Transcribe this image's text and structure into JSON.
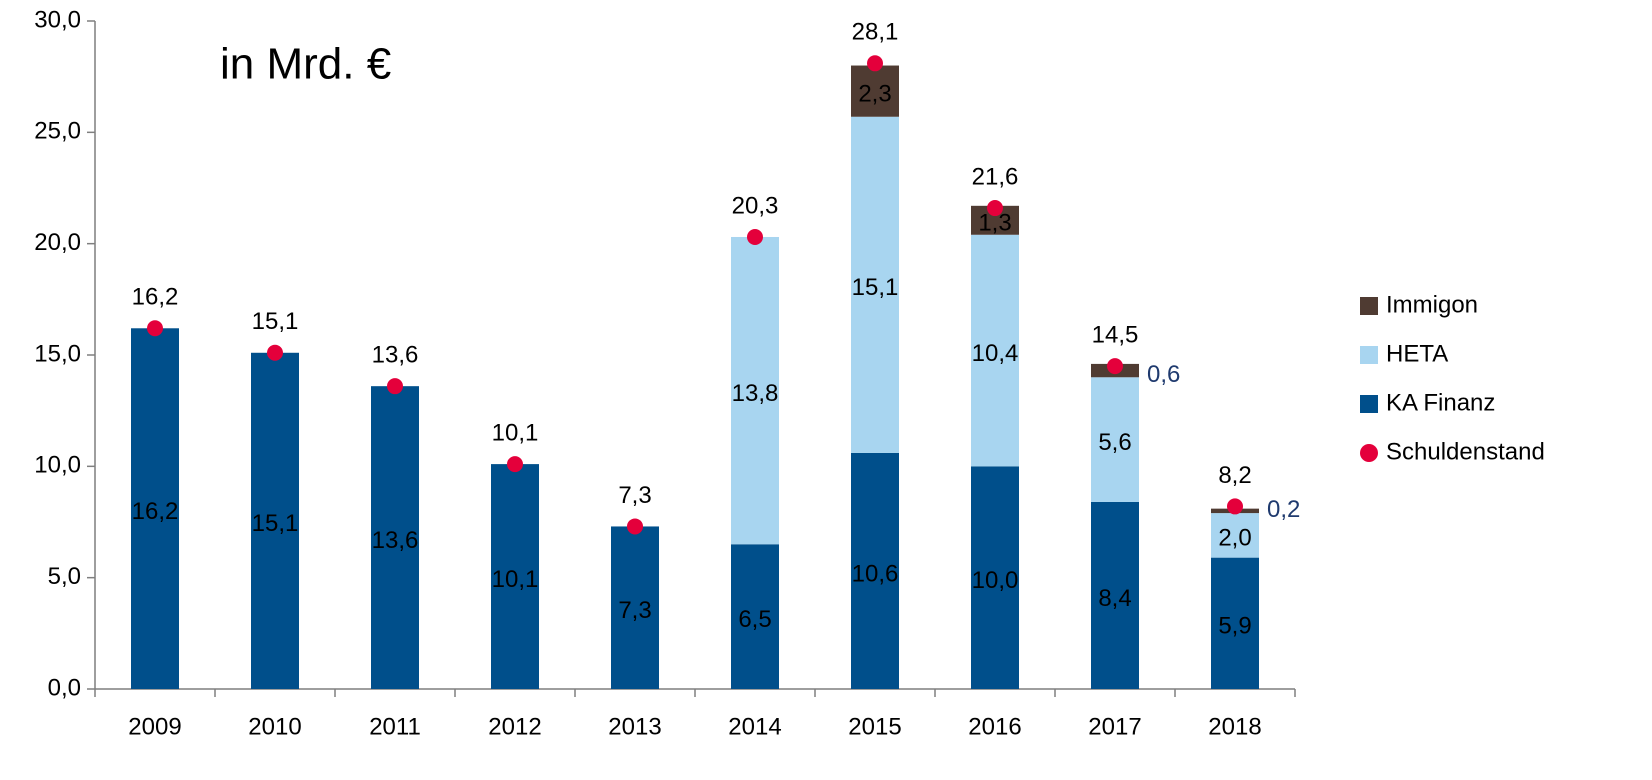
{
  "chart_data": {
    "type": "bar",
    "annotation": "in Mrd. €",
    "categories": [
      "2009",
      "2010",
      "2011",
      "2012",
      "2013",
      "2014",
      "2015",
      "2016",
      "2017",
      "2018"
    ],
    "series": [
      {
        "name": "KA Finanz",
        "type": "bar",
        "color": "#004f8b",
        "label_color": "#ffffff",
        "values": [
          16.2,
          15.1,
          13.6,
          10.1,
          7.3,
          6.5,
          10.6,
          10.0,
          8.4,
          5.9
        ],
        "value_labels": [
          "16,2",
          "15,1",
          "13,6",
          "10,1",
          "7,3",
          "6,5",
          "10,6",
          "10,0",
          "8,4",
          "5,9"
        ]
      },
      {
        "name": "HETA",
        "type": "bar",
        "color": "#a8d5f0",
        "label_color": "#000000",
        "values": [
          null,
          null,
          null,
          null,
          null,
          13.8,
          15.1,
          10.4,
          5.6,
          2.0
        ],
        "value_labels": [
          null,
          null,
          null,
          null,
          null,
          "13,8",
          "15,1",
          "10,4",
          "5,6",
          "2,0"
        ]
      },
      {
        "name": "Immigon",
        "type": "bar",
        "color": "#4f3b32",
        "label_color": "#ffffff",
        "values": [
          null,
          null,
          null,
          null,
          null,
          null,
          2.3,
          1.3,
          0.6,
          0.2
        ],
        "value_labels": [
          null,
          null,
          null,
          null,
          null,
          null,
          "2,3",
          "1,3",
          "0,6",
          "0,2"
        ]
      },
      {
        "name": "Schuldenstand",
        "type": "scatter",
        "color": "#e4003b",
        "label_color": "#e4003b",
        "values": [
          16.2,
          15.1,
          13.6,
          10.1,
          7.3,
          20.3,
          28.1,
          21.6,
          14.5,
          8.2
        ],
        "value_labels": [
          "16,2",
          "15,1",
          "13,6",
          "10,1",
          "7,3",
          "20,3",
          "28,1",
          "21,6",
          "14,5",
          "8,2"
        ]
      }
    ],
    "ylim": [
      0,
      30
    ],
    "yticks": [
      {
        "value": 0,
        "label": "0,0"
      },
      {
        "value": 5,
        "label": "5,0"
      },
      {
        "value": 10,
        "label": "10,0"
      },
      {
        "value": 15,
        "label": "15,0"
      },
      {
        "value": 20,
        "label": "20,0"
      },
      {
        "value": 25,
        "label": "25,0"
      },
      {
        "value": 30,
        "label": "30,0"
      }
    ],
    "legend": "right"
  }
}
